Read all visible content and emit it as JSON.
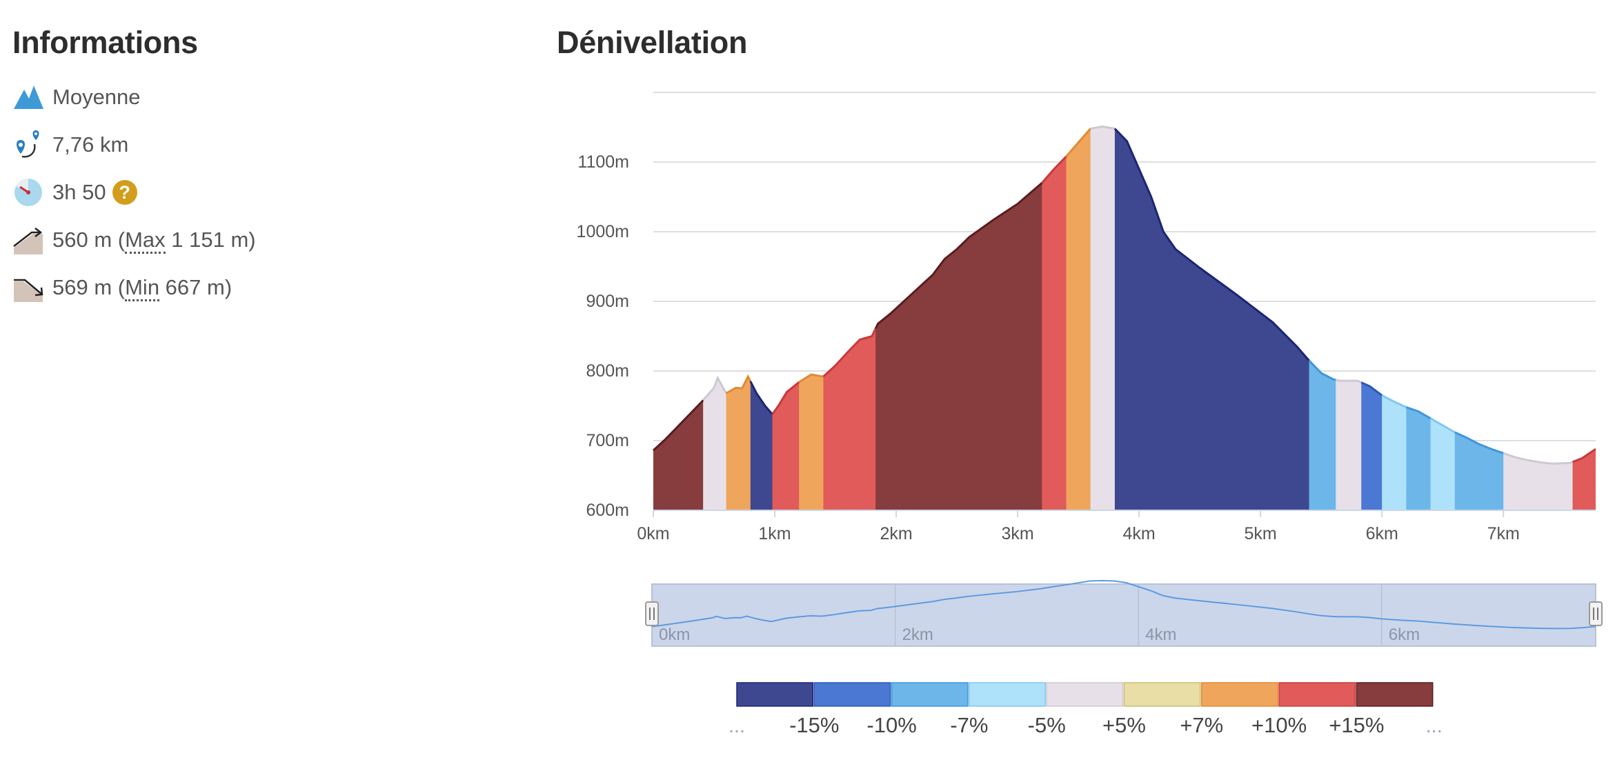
{
  "info": {
    "title": "Informations",
    "difficulty": "Moyenne",
    "distance": "7,76 km",
    "duration": "3h 50",
    "help": "?",
    "ascent": "560 m (",
    "ascent_abbr": "Max",
    "ascent_rest": " 1 151 m)",
    "descent": "569 m (",
    "descent_abbr": "Min",
    "descent_rest": " 667 m)"
  },
  "colors": {
    "brown": "#873c3e",
    "red": "#e05b59",
    "orange": "#f0a55c",
    "yellow": "#e8dea6",
    "grey": "#e7e0e8",
    "light_blue": "#aee2fb",
    "sky": "#6cb6ea",
    "blue": "#4a78d3",
    "navy": "#3e4890"
  },
  "chart_data": {
    "type": "area",
    "title": "Dénivellation",
    "xlabel": "",
    "ylabel": "",
    "x_unit": "km",
    "y_unit": "m",
    "xlim": [
      0,
      7.76
    ],
    "ylim": [
      600,
      1200
    ],
    "x_ticks": [
      0,
      1,
      2,
      3,
      4,
      5,
      6,
      7
    ],
    "x_tick_labels": [
      "0km",
      "1km",
      "2km",
      "3km",
      "4km",
      "5km",
      "6km",
      "7km"
    ],
    "y_ticks": [
      600,
      700,
      800,
      900,
      1000,
      1100
    ],
    "y_tick_labels": [
      "600m",
      "700m",
      "800m",
      "900m",
      "1000m",
      "1100m"
    ],
    "grid": true,
    "profile": [
      [
        0,
        686
      ],
      [
        0.1,
        702
      ],
      [
        0.2,
        720
      ],
      [
        0.3,
        738
      ],
      [
        0.4,
        756
      ],
      [
        0.5,
        776
      ],
      [
        0.53,
        790
      ],
      [
        0.6,
        768
      ],
      [
        0.68,
        776
      ],
      [
        0.73,
        775
      ],
      [
        0.78,
        792
      ],
      [
        0.85,
        768
      ],
      [
        0.92,
        750
      ],
      [
        0.98,
        738
      ],
      [
        1.03,
        750
      ],
      [
        1.1,
        770
      ],
      [
        1.2,
        784
      ],
      [
        1.3,
        795
      ],
      [
        1.4,
        792
      ],
      [
        1.5,
        808
      ],
      [
        1.6,
        827
      ],
      [
        1.7,
        845
      ],
      [
        1.8,
        850
      ],
      [
        1.85,
        868
      ],
      [
        1.95,
        882
      ],
      [
        2.1,
        906
      ],
      [
        2.3,
        938
      ],
      [
        2.4,
        961
      ],
      [
        2.5,
        975
      ],
      [
        2.6,
        992
      ],
      [
        2.8,
        1017
      ],
      [
        3.0,
        1040
      ],
      [
        3.2,
        1070
      ],
      [
        3.3,
        1090
      ],
      [
        3.4,
        1108
      ],
      [
        3.6,
        1148
      ],
      [
        3.7,
        1151
      ],
      [
        3.8,
        1148
      ],
      [
        3.9,
        1130
      ],
      [
        4.0,
        1090
      ],
      [
        4.1,
        1050
      ],
      [
        4.2,
        1000
      ],
      [
        4.3,
        975
      ],
      [
        4.5,
        948
      ],
      [
        4.8,
        910
      ],
      [
        5.1,
        870
      ],
      [
        5.3,
        835
      ],
      [
        5.4,
        815
      ],
      [
        5.5,
        797
      ],
      [
        5.6,
        788
      ],
      [
        5.65,
        786
      ],
      [
        5.75,
        786
      ],
      [
        5.8,
        786
      ],
      [
        5.9,
        778
      ],
      [
        6.0,
        765
      ],
      [
        6.1,
        756
      ],
      [
        6.2,
        748
      ],
      [
        6.3,
        742
      ],
      [
        6.4,
        732
      ],
      [
        6.5,
        722
      ],
      [
        6.6,
        712
      ],
      [
        6.7,
        704
      ],
      [
        6.8,
        695
      ],
      [
        6.9,
        688
      ],
      [
        7.0,
        682
      ],
      [
        7.1,
        676
      ],
      [
        7.2,
        672
      ],
      [
        7.3,
        669
      ],
      [
        7.4,
        667
      ],
      [
        7.55,
        668
      ],
      [
        7.65,
        675
      ],
      [
        7.76,
        688
      ]
    ],
    "segments": [
      {
        "from": 0,
        "to": 0.41,
        "color": "brown"
      },
      {
        "from": 0.41,
        "to": 0.6,
        "color": "grey"
      },
      {
        "from": 0.6,
        "to": 0.8,
        "color": "orange"
      },
      {
        "from": 0.8,
        "to": 0.98,
        "color": "navy"
      },
      {
        "from": 0.98,
        "to": 1.2,
        "color": "red"
      },
      {
        "from": 1.2,
        "to": 1.4,
        "color": "orange"
      },
      {
        "from": 1.4,
        "to": 1.83,
        "color": "red"
      },
      {
        "from": 1.83,
        "to": 3.2,
        "color": "brown"
      },
      {
        "from": 3.2,
        "to": 3.4,
        "color": "red"
      },
      {
        "from": 3.4,
        "to": 3.6,
        "color": "orange"
      },
      {
        "from": 3.6,
        "to": 3.8,
        "color": "grey"
      },
      {
        "from": 3.8,
        "to": 5.4,
        "color": "navy"
      },
      {
        "from": 5.4,
        "to": 5.62,
        "color": "sky"
      },
      {
        "from": 5.62,
        "to": 5.83,
        "color": "grey"
      },
      {
        "from": 5.83,
        "to": 6.0,
        "color": "blue"
      },
      {
        "from": 6.0,
        "to": 6.2,
        "color": "light_blue"
      },
      {
        "from": 6.2,
        "to": 6.4,
        "color": "sky"
      },
      {
        "from": 6.4,
        "to": 6.6,
        "color": "light_blue"
      },
      {
        "from": 6.6,
        "to": 7.0,
        "color": "sky"
      },
      {
        "from": 7.0,
        "to": 7.57,
        "color": "grey"
      },
      {
        "from": 7.57,
        "to": 7.76,
        "color": "red"
      }
    ],
    "navigator": {
      "x_tick_labels": [
        "0km",
        "2km",
        "4km",
        "6km"
      ],
      "x_ticks": [
        0,
        2,
        4,
        6
      ]
    },
    "legend": {
      "colors": [
        "navy",
        "blue",
        "sky",
        "light_blue",
        "grey",
        "yellow",
        "orange",
        "red",
        "brown"
      ],
      "labels": [
        "...",
        "-15%",
        "-10%",
        "-7%",
        "-5%",
        "+5%",
        "+7%",
        "+10%",
        "+15%",
        "..."
      ]
    }
  }
}
